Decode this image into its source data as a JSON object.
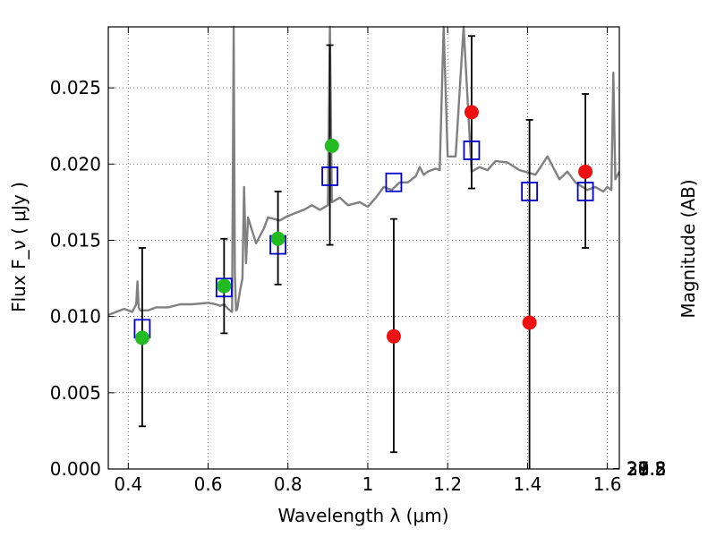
{
  "chart_data": {
    "type": "scatter",
    "xlabel": "Wavelength  λ (μm)",
    "ylabel": "Flux  F_ν  ( μJy )",
    "ylabel_right": "Magnitude (AB)",
    "xlim": [
      0.35,
      1.63
    ],
    "ylim": [
      0.0,
      0.029
    ],
    "grid": true,
    "x_ticks": [
      0.4,
      0.6,
      0.8,
      1.0,
      1.2,
      1.4,
      1.6
    ],
    "x_tick_labels": [
      "0.4",
      "0.6",
      "0.8",
      "1",
      "1.2",
      "1.4",
      "1.6"
    ],
    "y_ticks": [
      0.0,
      0.005,
      0.01,
      0.015,
      0.02,
      0.025
    ],
    "y_tick_labels": [
      "0.000",
      "0.005",
      "0.010",
      "0.015",
      "0.020",
      "0.025"
    ],
    "right_ticks": [
      {
        "mag": 27.8,
        "label": "27.8"
      },
      {
        "mag": 28.0,
        "label": "28"
      },
      {
        "mag": 28.2,
        "label": "28.2"
      },
      {
        "mag": 28.5,
        "label": "28.5"
      },
      {
        "mag": 29.0,
        "label": "29"
      },
      {
        "mag": 29.5,
        "label": "29.5"
      },
      {
        "mag": 30.0,
        "label": "30"
      },
      {
        "mag": 31.0,
        "label": "31"
      }
    ],
    "series": [
      {
        "style": "line",
        "color": "#808080",
        "x": [
          0.35,
          0.37,
          0.39,
          0.41,
          0.42,
          0.423,
          0.426,
          0.43,
          0.45,
          0.47,
          0.5,
          0.53,
          0.56,
          0.6,
          0.62,
          0.63,
          0.64,
          0.65,
          0.66,
          0.664,
          0.667,
          0.67,
          0.673,
          0.68,
          0.686,
          0.69,
          0.695,
          0.7,
          0.72,
          0.74,
          0.75,
          0.78,
          0.8,
          0.82,
          0.84,
          0.86,
          0.88,
          0.9,
          0.905,
          0.91,
          0.93,
          0.95,
          0.98,
          1.0,
          1.02,
          1.04,
          1.06,
          1.08,
          1.1,
          1.12,
          1.13,
          1.14,
          1.15,
          1.17,
          1.18,
          1.19,
          1.2,
          1.22,
          1.24,
          1.26,
          1.28,
          1.3,
          1.32,
          1.35,
          1.38,
          1.42,
          1.45,
          1.48,
          1.5,
          1.52,
          1.55,
          1.57,
          1.59,
          1.6,
          1.61,
          1.615,
          1.62,
          1.63
        ],
        "y": [
          0.0101,
          0.0103,
          0.0105,
          0.0103,
          0.0108,
          0.0123,
          0.0106,
          0.0104,
          0.0104,
          0.0106,
          0.0106,
          0.0108,
          0.0108,
          0.0109,
          0.0108,
          0.0107,
          0.0108,
          0.0105,
          0.0103,
          0.029,
          0.0128,
          0.0104,
          0.0105,
          0.0117,
          0.0125,
          0.0185,
          0.0135,
          0.0165,
          0.0148,
          0.0158,
          0.0165,
          0.0163,
          0.0166,
          0.0168,
          0.017,
          0.0173,
          0.017,
          0.0173,
          0.029,
          0.0175,
          0.0178,
          0.0173,
          0.0175,
          0.0172,
          0.0178,
          0.0185,
          0.0183,
          0.0188,
          0.0188,
          0.0192,
          0.0198,
          0.0193,
          0.0195,
          0.0197,
          0.0196,
          0.029,
          0.0205,
          0.0205,
          0.029,
          0.0195,
          0.0198,
          0.0196,
          0.0202,
          0.0201,
          0.0196,
          0.0193,
          0.0205,
          0.019,
          0.0195,
          0.0188,
          0.0183,
          0.0185,
          0.0182,
          0.0185,
          0.0183,
          0.026,
          0.019,
          0.0195
        ]
      },
      {
        "style": "open-square",
        "color": "#0000cc",
        "x": [
          0.435,
          0.64,
          0.775,
          0.905,
          1.065,
          1.26,
          1.405,
          1.545
        ],
        "y": [
          0.0092,
          0.0119,
          0.0147,
          0.0192,
          0.0188,
          0.0209,
          0.0182,
          0.0182
        ]
      },
      {
        "style": "dot",
        "color": "#22bb22",
        "x": [
          0.435,
          0.64,
          0.775,
          0.91
        ],
        "y": [
          0.0086,
          0.012,
          0.0151,
          0.0212
        ]
      },
      {
        "style": "dot",
        "color": "#ee1111",
        "x": [
          1.065,
          1.26,
          1.405,
          1.545
        ],
        "y": [
          0.0087,
          0.0234,
          0.0096,
          0.0195
        ]
      },
      {
        "style": "errorbar",
        "color": "#000000",
        "x": [
          0.435,
          0.64,
          0.775,
          0.905,
          1.065,
          1.26,
          1.405,
          1.545
        ],
        "y_low": [
          0.0028,
          0.0089,
          0.0121,
          0.0147,
          0.0011,
          0.0184,
          -0.001,
          0.0145
        ],
        "y_high": [
          0.0145,
          0.0151,
          0.0182,
          0.0278,
          0.0164,
          0.0284,
          0.0229,
          0.0246
        ]
      }
    ]
  }
}
